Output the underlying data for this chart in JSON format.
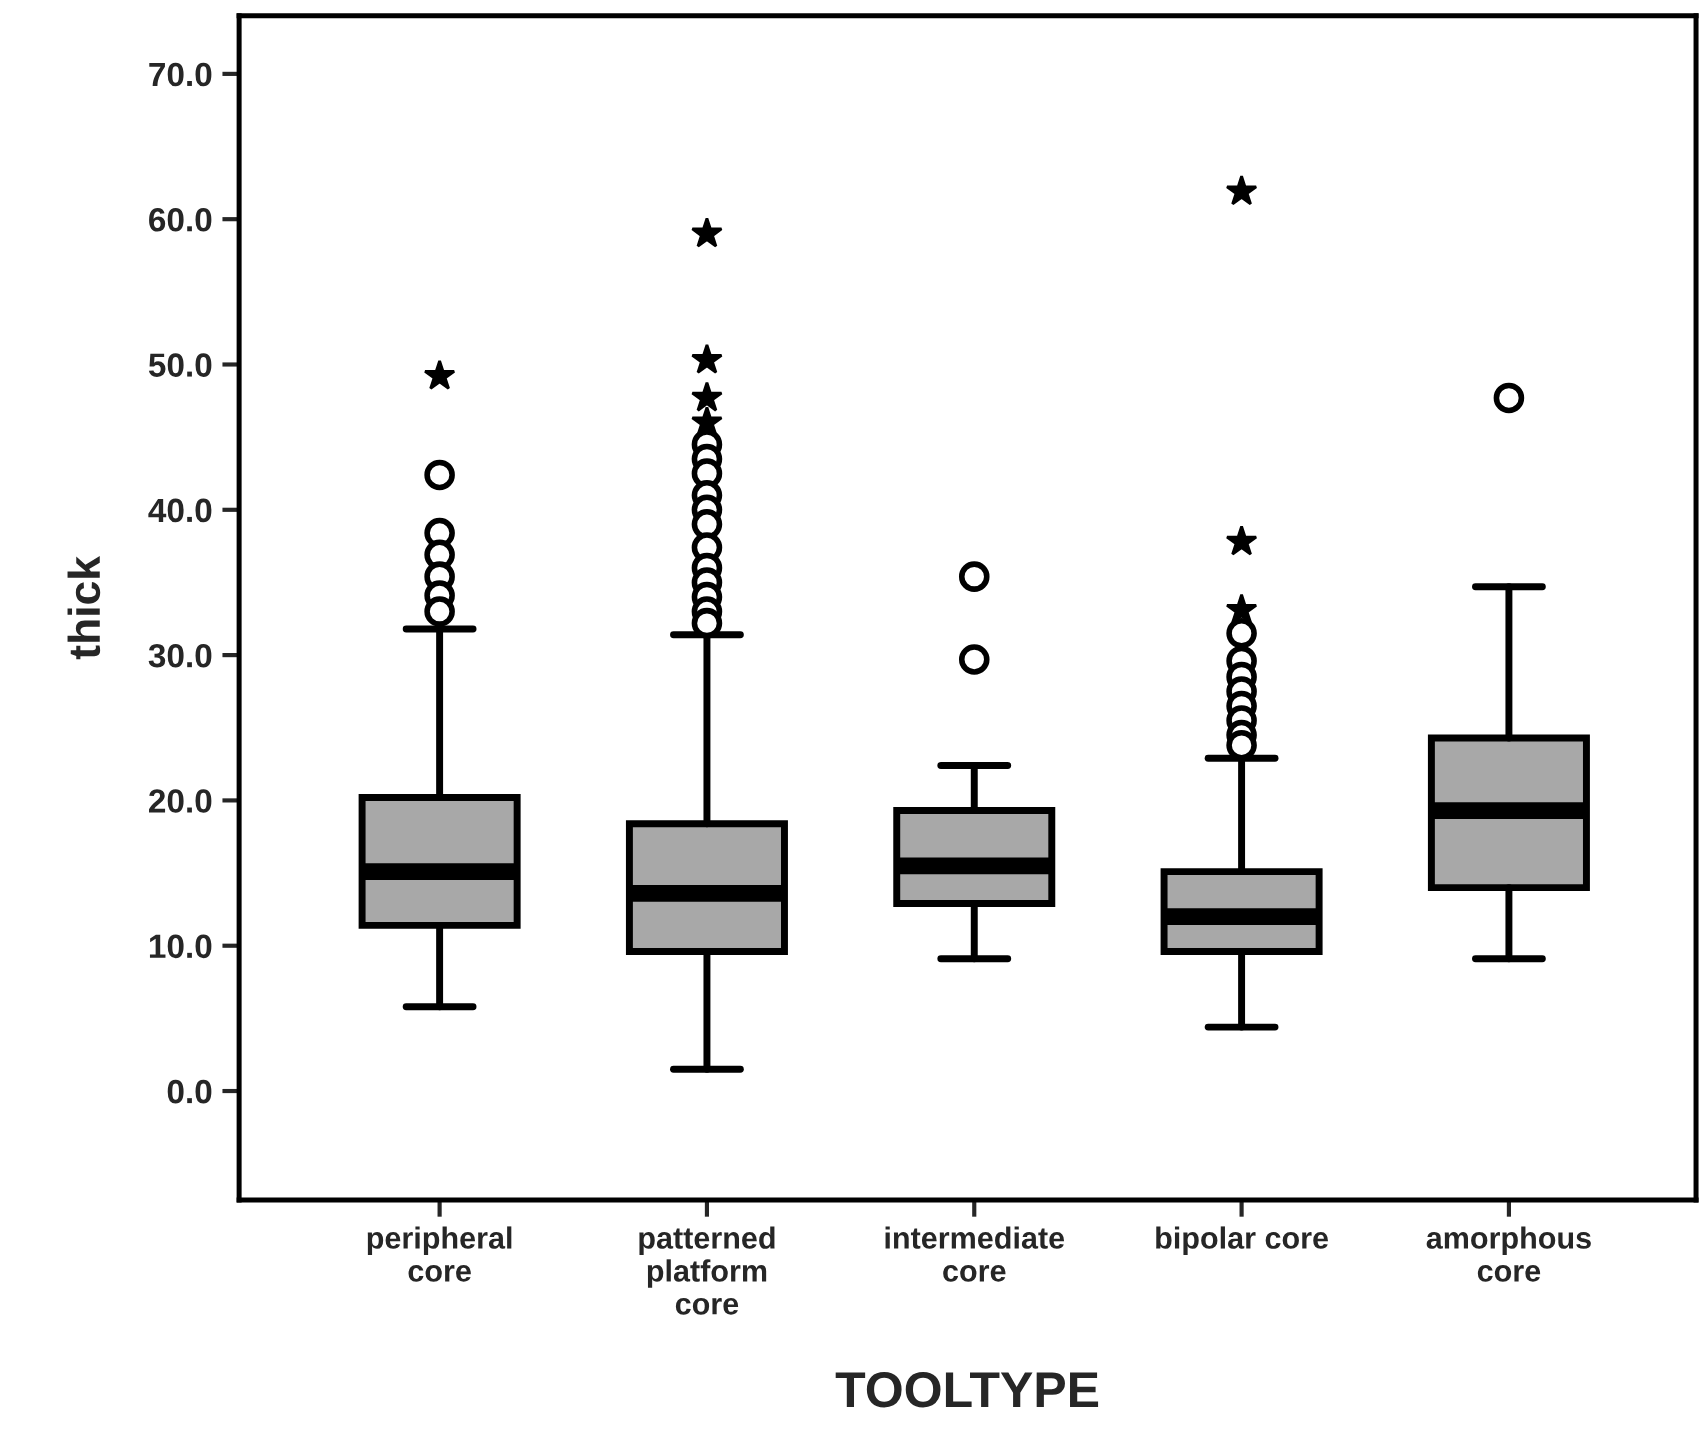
{
  "chart_data": {
    "type": "box",
    "xlabel": "TOOLTYPE",
    "ylabel": "thick",
    "categories": [
      "peripheral\ncore",
      "patterned\nplatform\ncore",
      "intermediate\ncore",
      "bipolar core",
      "amorphous\ncore"
    ],
    "color": "#a8a8a8",
    "ylim": [
      -7.5,
      74
    ],
    "yticks": [
      {
        "value": 0,
        "label": "0.0"
      },
      {
        "value": 10,
        "label": "10.0"
      },
      {
        "value": 20,
        "label": "20.0"
      },
      {
        "value": 30,
        "label": "30.0"
      },
      {
        "value": 40,
        "label": "40.0"
      },
      {
        "value": 50,
        "label": "50.0"
      },
      {
        "value": 60,
        "label": "60.0"
      },
      {
        "value": 70,
        "label": "70.0"
      }
    ],
    "grid": false,
    "boxes": [
      {
        "low": 5.8,
        "q1": 11.4,
        "median": 15.1,
        "q3": 20.2,
        "high": 31.8,
        "outliers": [
          49.2,
          42.4,
          38.4,
          36.9,
          35.4,
          34.1,
          33.0
        ]
      },
      {
        "low": 1.5,
        "q1": 9.6,
        "median": 13.6,
        "q3": 18.4,
        "high": 31.4,
        "outliers": [
          59.0,
          50.3,
          47.7,
          46.0,
          44.5,
          43.5,
          42.5,
          41.0,
          40.0,
          39.0,
          37.4,
          36.0,
          35.0,
          34.0,
          33.0,
          32.2
        ]
      },
      {
        "low": 9.1,
        "q1": 12.9,
        "median": 15.5,
        "q3": 19.3,
        "high": 22.4,
        "outliers": [
          35.4,
          29.7
        ]
      },
      {
        "low": 4.4,
        "q1": 9.6,
        "median": 12.0,
        "q3": 15.1,
        "high": 22.9,
        "outliers": [
          61.9,
          37.8,
          33.1,
          31.5,
          29.6,
          28.5,
          27.5,
          26.5,
          25.5,
          24.5,
          23.8
        ]
      },
      {
        "low": 9.1,
        "q1": 14.0,
        "median": 19.3,
        "q3": 24.3,
        "high": 34.7,
        "outliers": [
          47.7
        ]
      }
    ]
  }
}
